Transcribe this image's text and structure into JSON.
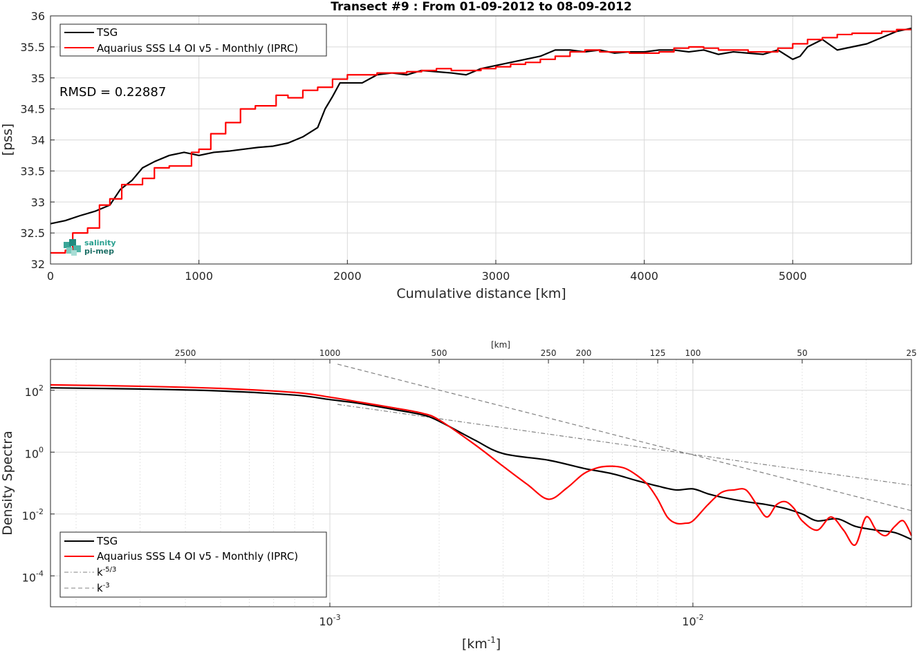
{
  "chart_data": [
    {
      "type": "line",
      "title": "Transect #9 : From 01-09-2012 to 08-09-2012",
      "xlabel": "Cumulative distance [km]",
      "ylabel": "[pss]",
      "xlim": [
        0,
        5800
      ],
      "ylim": [
        32,
        36
      ],
      "xticks": [
        0,
        1000,
        2000,
        3000,
        4000,
        5000
      ],
      "yticks": [
        32,
        32.5,
        33,
        33.5,
        34,
        34.5,
        35,
        35.5,
        36
      ],
      "ytick_labels": [
        "32",
        "32.5",
        "33",
        "33.5",
        "34",
        "34.5",
        "35",
        "35.5",
        "36"
      ],
      "grid": true,
      "legend": "top-left",
      "annotation": "RMSD = 0.22887",
      "logo": {
        "line1": "salinity",
        "line2": "pi-mep"
      },
      "series": [
        {
          "name": "TSG",
          "color": "#000000",
          "x": [
            0,
            100,
            200,
            300,
            400,
            470,
            550,
            620,
            700,
            800,
            900,
            1000,
            1100,
            1200,
            1300,
            1400,
            1500,
            1600,
            1700,
            1800,
            1850,
            1900,
            1950,
            2000,
            2100,
            2200,
            2300,
            2400,
            2500,
            2600,
            2700,
            2800,
            2900,
            3000,
            3100,
            3200,
            3300,
            3400,
            3500,
            3600,
            3700,
            3800,
            3900,
            4000,
            4100,
            4200,
            4300,
            4400,
            4500,
            4600,
            4700,
            4800,
            4900,
            5000,
            5050,
            5100,
            5200,
            5300,
            5400,
            5500,
            5600,
            5700,
            5800
          ],
          "y": [
            32.65,
            32.7,
            32.78,
            32.85,
            32.95,
            33.2,
            33.35,
            33.55,
            33.65,
            33.75,
            33.8,
            33.75,
            33.8,
            33.82,
            33.85,
            33.88,
            33.9,
            33.95,
            34.05,
            34.2,
            34.5,
            34.7,
            34.92,
            34.92,
            34.92,
            35.05,
            35.08,
            35.05,
            35.12,
            35.1,
            35.08,
            35.05,
            35.15,
            35.2,
            35.25,
            35.3,
            35.35,
            35.45,
            35.45,
            35.42,
            35.45,
            35.4,
            35.42,
            35.42,
            35.45,
            35.45,
            35.42,
            35.45,
            35.38,
            35.42,
            35.4,
            35.38,
            35.45,
            35.3,
            35.35,
            35.5,
            35.62,
            35.45,
            35.5,
            35.55,
            35.65,
            35.75,
            35.8
          ]
        },
        {
          "name": "Aquarius SSS L4 OI v5 - Monthly (IPRC)",
          "color": "#ff0000",
          "x": [
            0,
            100,
            150,
            250,
            330,
            400,
            480,
            620,
            700,
            800,
            950,
            1000,
            1080,
            1180,
            1280,
            1380,
            1520,
            1600,
            1700,
            1800,
            1900,
            2000,
            2100,
            2200,
            2300,
            2400,
            2500,
            2600,
            2700,
            2800,
            2900,
            3000,
            3100,
            3200,
            3300,
            3400,
            3500,
            3600,
            3700,
            3800,
            3900,
            4000,
            4100,
            4200,
            4300,
            4400,
            4500,
            4600,
            4700,
            4800,
            4900,
            5000,
            5100,
            5200,
            5300,
            5400,
            5500,
            5600,
            5700,
            5800
          ],
          "y": [
            32.18,
            32.22,
            32.5,
            32.58,
            32.95,
            33.05,
            33.28,
            33.38,
            33.55,
            33.58,
            33.8,
            33.85,
            34.1,
            34.28,
            34.5,
            34.55,
            34.72,
            34.68,
            34.8,
            34.85,
            34.98,
            35.05,
            35.05,
            35.08,
            35.08,
            35.1,
            35.12,
            35.15,
            35.12,
            35.12,
            35.15,
            35.18,
            35.22,
            35.25,
            35.3,
            35.35,
            35.42,
            35.45,
            35.42,
            35.42,
            35.4,
            35.4,
            35.42,
            35.48,
            35.5,
            35.48,
            35.45,
            35.45,
            35.42,
            35.42,
            35.48,
            35.55,
            35.62,
            35.65,
            35.7,
            35.72,
            35.72,
            35.75,
            35.78,
            35.78
          ]
        }
      ]
    },
    {
      "type": "line",
      "xscale": "log",
      "yscale": "log",
      "xlabel": "[km-1]",
      "xlabel_main": "[km",
      "xlabel_sup": "-1",
      "xlabel_end": "]",
      "ylabel": "Density Spectra",
      "top_axis_label": "[km]",
      "xlim": [
        0.00017,
        0.04
      ],
      "ylim": [
        1e-05,
        1000
      ],
      "xticks": [
        0.001,
        0.01
      ],
      "xtick_labels": [
        {
          "base": "10",
          "exp": "-3"
        },
        {
          "base": "10",
          "exp": "-2"
        }
      ],
      "yticks": [
        0.0001,
        0.01,
        1,
        100
      ],
      "ytick_labels": [
        {
          "base": "10",
          "exp": "-4"
        },
        {
          "base": "10",
          "exp": "-2"
        },
        {
          "base": "10",
          "exp": "0"
        },
        {
          "base": "10",
          "exp": "2"
        }
      ],
      "top_ticks_km": [
        2500,
        1000,
        500,
        250,
        200,
        125,
        100,
        50,
        25
      ],
      "grid": true,
      "legend": "bottom-left",
      "series": [
        {
          "name": "TSG",
          "color": "#000000",
          "x": [
            0.00017,
            0.0003,
            0.0005,
            0.0008,
            0.001,
            0.0012,
            0.0015,
            0.0018,
            0.002,
            0.0025,
            0.003,
            0.004,
            0.005,
            0.006,
            0.007,
            0.008,
            0.009,
            0.01,
            0.011,
            0.012,
            0.014,
            0.016,
            0.018,
            0.02,
            0.022,
            0.025,
            0.028,
            0.032,
            0.036,
            0.04
          ],
          "y": [
            120,
            110,
            95,
            70,
            50,
            38,
            24,
            16,
            10,
            2.5,
            0.9,
            0.55,
            0.3,
            0.2,
            0.12,
            0.08,
            0.06,
            0.065,
            0.045,
            0.035,
            0.025,
            0.02,
            0.015,
            0.01,
            0.006,
            0.007,
            0.004,
            0.003,
            0.0025,
            0.0015
          ]
        },
        {
          "name": "Aquarius SSS L4 OI v5 - Monthly (IPRC)",
          "color": "#ff0000",
          "x": [
            0.00017,
            0.0003,
            0.0005,
            0.0008,
            0.001,
            0.0012,
            0.0015,
            0.0018,
            0.002,
            0.0025,
            0.003,
            0.0035,
            0.004,
            0.0045,
            0.005,
            0.0055,
            0.006,
            0.0065,
            0.007,
            0.0075,
            0.008,
            0.0085,
            0.009,
            0.0095,
            0.01,
            0.011,
            0.012,
            0.013,
            0.014,
            0.015,
            0.016,
            0.017,
            0.018,
            0.019,
            0.02,
            0.022,
            0.024,
            0.026,
            0.028,
            0.03,
            0.032,
            0.034,
            0.036,
            0.038,
            0.04
          ],
          "y": [
            150,
            135,
            115,
            85,
            60,
            42,
            27,
            18,
            11,
            1.8,
            0.35,
            0.09,
            0.03,
            0.07,
            0.2,
            0.32,
            0.35,
            0.3,
            0.18,
            0.09,
            0.03,
            0.008,
            0.005,
            0.005,
            0.006,
            0.02,
            0.05,
            0.06,
            0.06,
            0.02,
            0.008,
            0.02,
            0.025,
            0.015,
            0.006,
            0.003,
            0.008,
            0.003,
            0.001,
            0.008,
            0.003,
            0.002,
            0.004,
            0.006,
            0.002
          ]
        },
        {
          "name": "k-5/3",
          "label_main": "k",
          "label_sup": "-5/3",
          "color": "#808080",
          "dash": "dashdot",
          "x": [
            0.00105,
            0.04
          ],
          "y": [
            35,
            0.085
          ]
        },
        {
          "name": "k-3",
          "label_main": "k",
          "label_sup": "-3",
          "color": "#808080",
          "dash": "dash",
          "x": [
            0.00105,
            0.04
          ],
          "y": [
            700,
            0.0128
          ]
        }
      ]
    }
  ]
}
